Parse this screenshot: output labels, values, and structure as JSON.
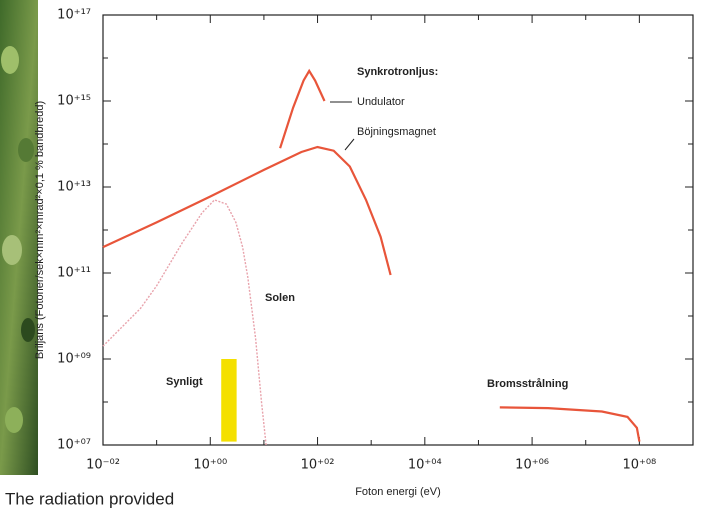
{
  "chart_data": {
    "type": "line",
    "x_label": "Foton energi (eV)",
    "y_label": "Briljans (Fotoner/sek×mm²×mrad²×0,1 % bandbredd)",
    "xscale": "log",
    "yscale": "log",
    "xlim": [
      0.01,
      1000000000
    ],
    "ylim": [
      10000000,
      100000000000000000
    ],
    "xticks": [
      {
        "value": 0.01,
        "label": "10⁻⁰²"
      },
      {
        "value": 1,
        "label": "10⁺⁰⁰"
      },
      {
        "value": 100,
        "label": "10⁺⁰²"
      },
      {
        "value": 10000,
        "label": "10⁺⁰⁴"
      },
      {
        "value": 1000000,
        "label": "10⁺⁰⁶"
      },
      {
        "value": 100000000,
        "label": "10⁺⁰⁸"
      }
    ],
    "yticks": [
      {
        "value": 10000000,
        "label": "10⁺⁰⁷"
      },
      {
        "value": 1000000000,
        "label": "10⁺⁰⁹"
      },
      {
        "value": 100000000000,
        "label": "10⁺¹¹"
      },
      {
        "value": 10000000000000,
        "label": "10⁺¹³"
      },
      {
        "value": 1000000000000000,
        "label": "10⁺¹⁵"
      },
      {
        "value": 100000000000000000,
        "label": "10⁺¹⁷"
      }
    ],
    "group_label": "Synkrotronljus:",
    "series": [
      {
        "name": "Undulator",
        "color": "#e8553a",
        "dash": false,
        "x": [
          20,
          35,
          55,
          70,
          90,
          135
        ],
        "values": [
          80000000000000,
          700000000000000,
          3000000000000000,
          5000000000000000,
          3000000000000000,
          1000000000000000
        ]
      },
      {
        "name": "Böjningsmagnet",
        "color": "#e8553a",
        "dash": false,
        "x": [
          0.01,
          0.1,
          1,
          10,
          50,
          100,
          200,
          400,
          800,
          1500,
          2300
        ],
        "values": [
          400000000000,
          1500000000000,
          6000000000000,
          25000000000000,
          65000000000000,
          85000000000000,
          70000000000000,
          30000000000000,
          5000000000000,
          700000000000,
          90000000000
        ]
      },
      {
        "name": "Solen",
        "color": "#e8a2ab",
        "dash": true,
        "x": [
          0.01,
          0.05,
          0.1,
          0.3,
          0.7,
          1.2,
          2,
          3,
          4,
          5,
          7,
          9,
          11
        ],
        "values": [
          2000000000,
          15000000000,
          50000000000,
          500000000000,
          2500000000000,
          5000000000000,
          4000000000000,
          1500000000000,
          400000000000,
          80000000000,
          3000000000,
          100000000,
          10000000
        ]
      },
      {
        "name": "Bromsstrålning",
        "color": "#e8553a",
        "dash": false,
        "x": [
          250000,
          2000000,
          20000000,
          60000000,
          90000000,
          100000000
        ],
        "values": [
          75000000,
          72000000,
          60000000,
          45000000,
          25000000,
          12000000
        ]
      }
    ],
    "bands": [
      {
        "name": "Synligt",
        "color": "#f4e000",
        "x": [
          1.6,
          3.1
        ],
        "y": [
          12000000,
          1000000000
        ]
      }
    ],
    "caption": "The radiation provided"
  }
}
